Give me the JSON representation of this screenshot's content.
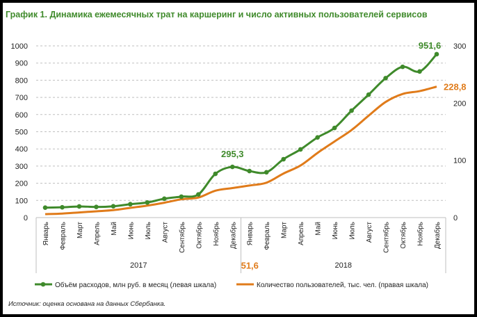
{
  "title": "График 1. Динамика ежемесячных трат на каршеринг и число активных пользователей сервисов",
  "source": "Источник: оценка основана на данных Сбербанка.",
  "chart_data": {
    "type": "line",
    "title": "График 1. Динамика ежемесячных трат на каршеринг и число активных пользователей сервисов",
    "categories": [
      "Январь",
      "Февраль",
      "Март",
      "Апрель",
      "Май",
      "Июнь",
      "Июль",
      "Август",
      "Сентябрь",
      "Октябрь",
      "Ноябрь",
      "Декабрь",
      "Январь",
      "Февраль",
      "Март",
      "Апрель",
      "Май",
      "Июнь",
      "Июль",
      "Август",
      "Сентябрь",
      "Октябрь",
      "Ноябрь",
      "Декабрь"
    ],
    "year_groups": [
      {
        "label": "2017",
        "count": 12
      },
      {
        "label": "2018",
        "count": 12
      }
    ],
    "y_left": {
      "range": [
        0,
        1000
      ],
      "ticks": [
        0,
        100,
        200,
        300,
        400,
        500,
        600,
        700,
        800,
        900,
        1000
      ]
    },
    "y_right": {
      "range": [
        0,
        300
      ],
      "ticks": [
        0,
        100,
        200,
        300
      ]
    },
    "grid": true,
    "legend_placement": "bottom",
    "series": [
      {
        "name": "Объём  расходов, млн руб. в месяц (левая шкала)",
        "axis": "left",
        "color": "#3f8a2b",
        "markers": true,
        "values": [
          58,
          60,
          65,
          62,
          66,
          78,
          88,
          110,
          122,
          135,
          255,
          295.3,
          271,
          264,
          340,
          397,
          467,
          522,
          623,
          716,
          812,
          878,
          851,
          951.6
        ]
      },
      {
        "name": "Количество пользователей, тыс. чел. (правая шкала)",
        "axis": "right",
        "color": "#e07b1a",
        "markers": false,
        "values": [
          6,
          7,
          9,
          11,
          13,
          17,
          21,
          26,
          32,
          35,
          47,
          51.6,
          56,
          61,
          77,
          91,
          113,
          133,
          153,
          178,
          202,
          216,
          221,
          228.8
        ]
      }
    ],
    "annotations": [
      {
        "text": "295,3",
        "series": 0,
        "index": 11,
        "color": "#3f8a2b"
      },
      {
        "text": "951,6",
        "series": 0,
        "index": 23,
        "color": "#3f8a2b"
      },
      {
        "text": "51,6",
        "series": 1,
        "index": 11,
        "color": "#e07b1a"
      },
      {
        "text": "228,8",
        "series": 1,
        "index": 23,
        "color": "#e07b1a"
      }
    ]
  }
}
